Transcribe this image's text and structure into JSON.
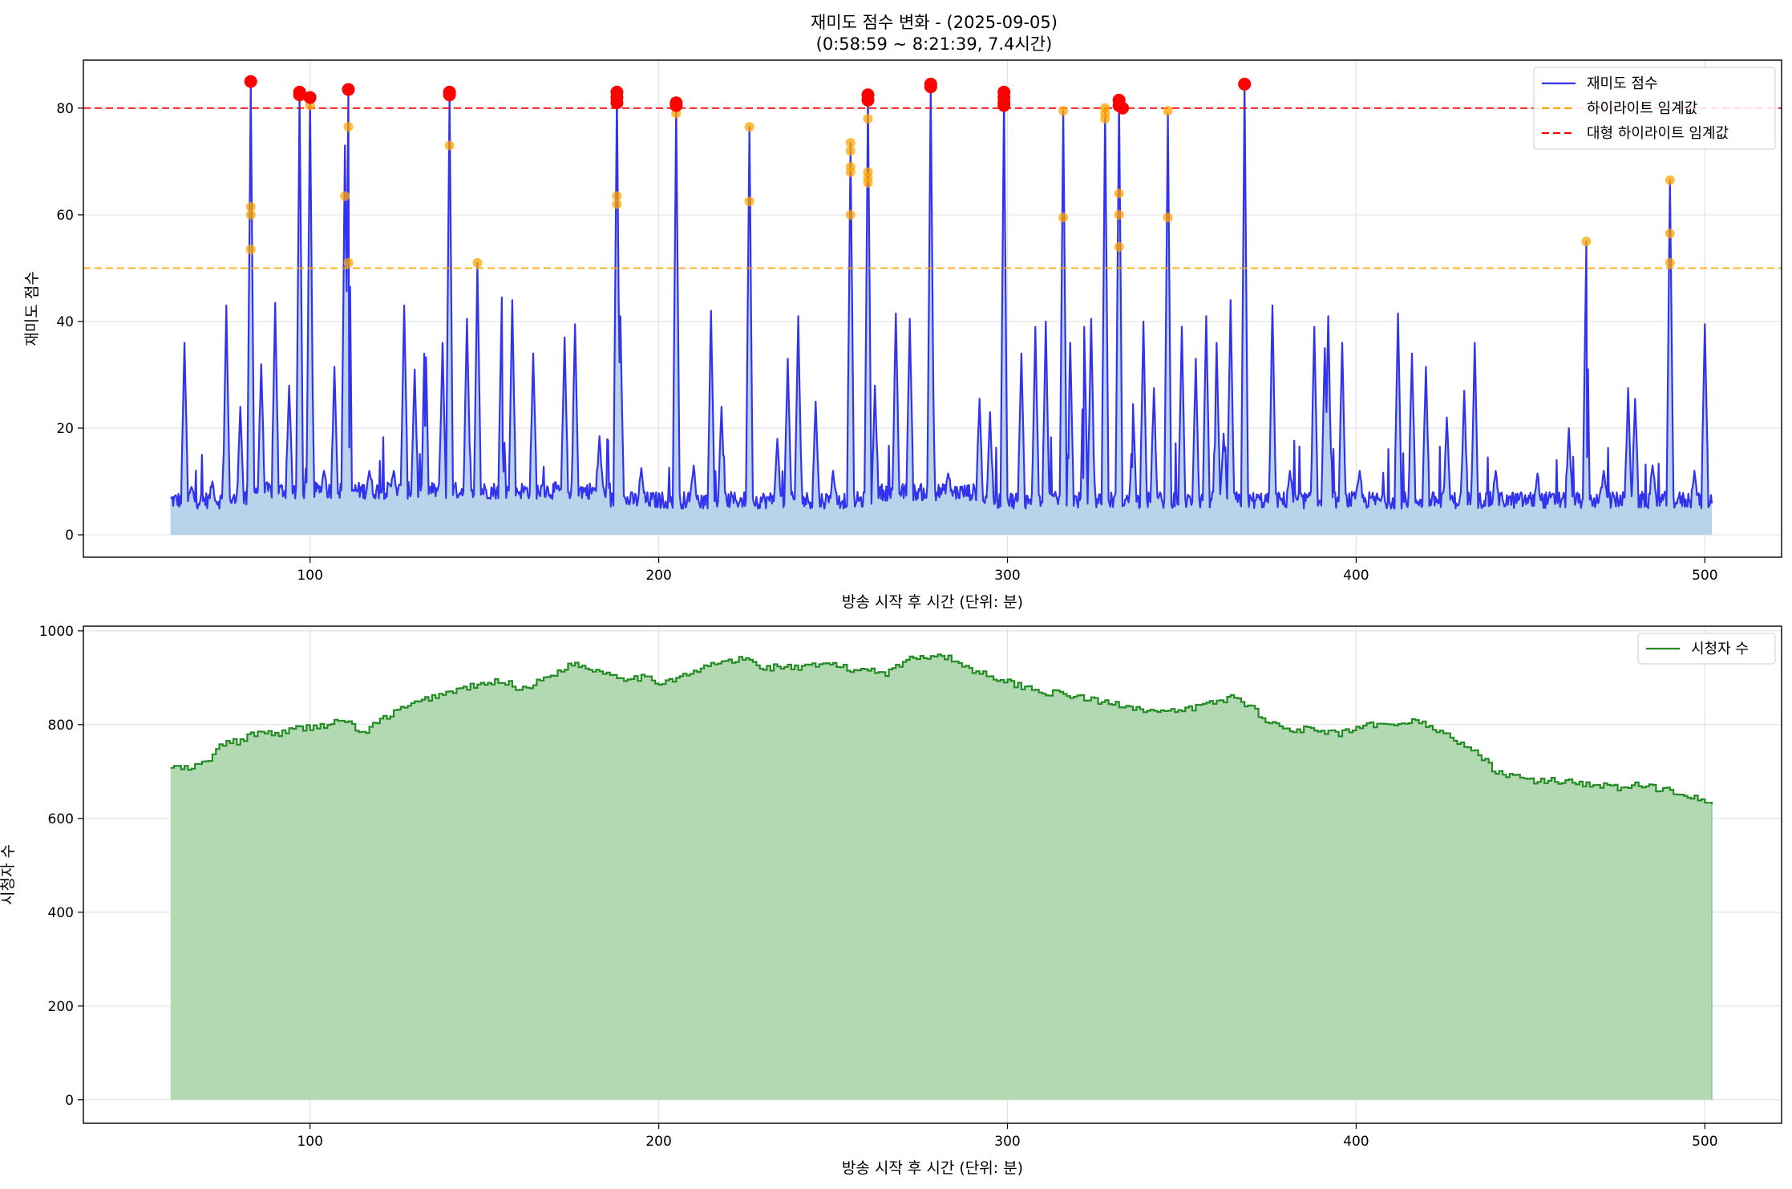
{
  "figure": {
    "title_line1": "재미도 점수 변화 - (2025-09-05)",
    "title_line2": "(0:58:59 ~ 8:21:39, 7.4시간)"
  },
  "chart_data": [
    {
      "type": "line",
      "title": "재미도 점수 변화 - (2025-09-05) (0:58:59 ~ 8:21:39, 7.4시간)",
      "xlabel": "방송 시작 후 시간 (단위: 분)",
      "ylabel": "재미도 점수",
      "xlim": [
        35,
        522
      ],
      "ylim": [
        -4.2,
        89
      ],
      "xticks": [
        100,
        200,
        300,
        400,
        500
      ],
      "yticks": [
        0,
        20,
        40,
        60,
        80
      ],
      "x_range": [
        60,
        502
      ],
      "baseline_level": 6.5,
      "grid": true,
      "legend_position": "top-right",
      "series": [
        {
          "name": "재미도 점수",
          "color": "#3333ee",
          "style": "solid"
        },
        {
          "name": "하이라이트 임계값",
          "color": "#ffa500",
          "style": "dashed",
          "value": 50
        },
        {
          "name": "대형 하이라이트 임계값",
          "color": "#ff0000",
          "style": "dashed",
          "value": 80
        }
      ],
      "peaks": [
        [
          64,
          36
        ],
        [
          66,
          9
        ],
        [
          72,
          10
        ],
        [
          76,
          43
        ],
        [
          80,
          24
        ],
        [
          83,
          85
        ],
        [
          86,
          32
        ],
        [
          90,
          43.5
        ],
        [
          94,
          28
        ],
        [
          97,
          83
        ],
        [
          100,
          82
        ],
        [
          104,
          12
        ],
        [
          107,
          31.5
        ],
        [
          110,
          73
        ],
        [
          111,
          83.5
        ],
        [
          117,
          12
        ],
        [
          124,
          12
        ],
        [
          127,
          43
        ],
        [
          130,
          31
        ],
        [
          133,
          42
        ],
        [
          138,
          36
        ],
        [
          140,
          83
        ],
        [
          145,
          40.5
        ],
        [
          148,
          51
        ],
        [
          155,
          44.5
        ],
        [
          158,
          44
        ],
        [
          164,
          34
        ],
        [
          173,
          37
        ],
        [
          176,
          39.5
        ],
        [
          183,
          18.5
        ],
        [
          188,
          83
        ],
        [
          189,
          41
        ],
        [
          195,
          12.5
        ],
        [
          205,
          81
        ],
        [
          210,
          13
        ],
        [
          215,
          42
        ],
        [
          218,
          24
        ],
        [
          226,
          76.5
        ],
        [
          234,
          18
        ],
        [
          237,
          33
        ],
        [
          240,
          41
        ],
        [
          245,
          25
        ],
        [
          250,
          12
        ],
        [
          255,
          73.5
        ],
        [
          260,
          82.5
        ],
        [
          262,
          28
        ],
        [
          268,
          41.5
        ],
        [
          272,
          40.5
        ],
        [
          278,
          84
        ],
        [
          283,
          11.5
        ],
        [
          292,
          25.5
        ],
        [
          295,
          23
        ],
        [
          299,
          83
        ],
        [
          304,
          34
        ],
        [
          308,
          39
        ],
        [
          311,
          40
        ],
        [
          316,
          79.5
        ],
        [
          318,
          36
        ],
        [
          322,
          39
        ],
        [
          324,
          40.5
        ],
        [
          328,
          80
        ],
        [
          332,
          81.5
        ],
        [
          336,
          24.5
        ],
        [
          339,
          40
        ],
        [
          342,
          27.5
        ],
        [
          346,
          79
        ],
        [
          350,
          39
        ],
        [
          354,
          33
        ],
        [
          357,
          41
        ],
        [
          360,
          36
        ],
        [
          362,
          19
        ],
        [
          364,
          44
        ],
        [
          368,
          84.5
        ],
        [
          376,
          43
        ],
        [
          381,
          12
        ],
        [
          388,
          39
        ],
        [
          391,
          35
        ],
        [
          392,
          41
        ],
        [
          396,
          36
        ],
        [
          401,
          12
        ],
        [
          412,
          41.5
        ],
        [
          416,
          34
        ],
        [
          420,
          31.5
        ],
        [
          426,
          22
        ],
        [
          431,
          27
        ],
        [
          434,
          36
        ],
        [
          440,
          12
        ],
        [
          452,
          11.5
        ],
        [
          461,
          20
        ],
        [
          466,
          55
        ],
        [
          471,
          12
        ],
        [
          478,
          27.5
        ],
        [
          480,
          25.5
        ],
        [
          485,
          13
        ],
        [
          490,
          66.5
        ],
        [
          497,
          12
        ],
        [
          500,
          39.5
        ]
      ],
      "highlight_points": [
        [
          83,
          61.5
        ],
        [
          83,
          60
        ],
        [
          83,
          53.5
        ],
        [
          100,
          80.5
        ],
        [
          110,
          63.5
        ],
        [
          111,
          76.5
        ],
        [
          111,
          51
        ],
        [
          140,
          73
        ],
        [
          148,
          51
        ],
        [
          188,
          63.5
        ],
        [
          188,
          62
        ],
        [
          205,
          79
        ],
        [
          226,
          76.5
        ],
        [
          226,
          62.5
        ],
        [
          255,
          73.5
        ],
        [
          255,
          72
        ],
        [
          255,
          69
        ],
        [
          255,
          68
        ],
        [
          255,
          60
        ],
        [
          260,
          78
        ],
        [
          260,
          68
        ],
        [
          260,
          67
        ],
        [
          260,
          66
        ],
        [
          316,
          79.5
        ],
        [
          316,
          59.5
        ],
        [
          328,
          80
        ],
        [
          328,
          79
        ],
        [
          328,
          78
        ],
        [
          332,
          64
        ],
        [
          332,
          60
        ],
        [
          332,
          54
        ],
        [
          346,
          79.5
        ],
        [
          346,
          59.5
        ],
        [
          466,
          55
        ],
        [
          490,
          66.5
        ],
        [
          490,
          56.5
        ],
        [
          490,
          51
        ]
      ],
      "big_highlight_points": [
        [
          83,
          85
        ],
        [
          97,
          83
        ],
        [
          97,
          82.5
        ],
        [
          100,
          82
        ],
        [
          111,
          83.5
        ],
        [
          140,
          83
        ],
        [
          140,
          82.5
        ],
        [
          188,
          83
        ],
        [
          188,
          82
        ],
        [
          188,
          81
        ],
        [
          205,
          81
        ],
        [
          205,
          80.5
        ],
        [
          260,
          82.5
        ],
        [
          260,
          81.5
        ],
        [
          278,
          84.5
        ],
        [
          278,
          84
        ],
        [
          299,
          83
        ],
        [
          299,
          82
        ],
        [
          299,
          81
        ],
        [
          299,
          80.5
        ],
        [
          332,
          81.5
        ],
        [
          332,
          80.5
        ],
        [
          333,
          80
        ],
        [
          368,
          84.5
        ]
      ]
    },
    {
      "type": "area",
      "xlabel": "방송 시작 후 시간 (단위: 분)",
      "ylabel": "시청자 수",
      "xlim": [
        35,
        522
      ],
      "ylim": [
        -50,
        1010
      ],
      "xticks": [
        100,
        200,
        300,
        400,
        500
      ],
      "yticks": [
        0,
        200,
        400,
        600,
        800,
        1000
      ],
      "grid": true,
      "legend_position": "top-right",
      "series": [
        {
          "name": "시청자 수",
          "color": "#228b22"
        }
      ],
      "x": [
        60,
        65,
        70,
        75,
        80,
        85,
        90,
        95,
        100,
        105,
        110,
        115,
        120,
        125,
        130,
        135,
        140,
        145,
        150,
        155,
        160,
        165,
        170,
        175,
        180,
        185,
        190,
        195,
        200,
        205,
        210,
        215,
        220,
        225,
        230,
        235,
        240,
        245,
        250,
        255,
        260,
        265,
        270,
        275,
        280,
        285,
        290,
        295,
        300,
        305,
        310,
        315,
        320,
        325,
        330,
        335,
        340,
        345,
        350,
        355,
        360,
        365,
        370,
        375,
        380,
        385,
        390,
        395,
        400,
        405,
        410,
        415,
        420,
        425,
        430,
        435,
        440,
        445,
        450,
        455,
        460,
        465,
        470,
        475,
        480,
        485,
        490,
        495,
        500,
        502
      ],
      "values": [
        710,
        705,
        720,
        760,
        765,
        785,
        780,
        790,
        795,
        800,
        810,
        780,
        810,
        830,
        845,
        860,
        870,
        880,
        885,
        895,
        875,
        890,
        910,
        930,
        920,
        910,
        900,
        900,
        890,
        900,
        910,
        930,
        935,
        940,
        920,
        925,
        920,
        925,
        930,
        915,
        920,
        910,
        935,
        945,
        950,
        935,
        915,
        905,
        890,
        880,
        870,
        865,
        860,
        850,
        845,
        840,
        830,
        825,
        830,
        840,
        850,
        860,
        835,
        805,
        790,
        790,
        785,
        780,
        790,
        800,
        795,
        810,
        800,
        780,
        760,
        735,
        700,
        690,
        680,
        680,
        680,
        675,
        670,
        665,
        670,
        665,
        660,
        650,
        640,
        625
      ]
    }
  ]
}
